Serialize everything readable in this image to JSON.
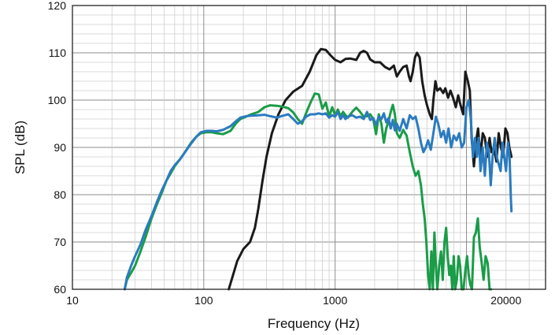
{
  "chart_data": {
    "type": "line",
    "title": "",
    "xlabel": "Frequency (Hz)",
    "ylabel": "SPL (dB)",
    "x_scale": "log",
    "xlim": [
      10,
      40000
    ],
    "ylim": [
      60,
      120
    ],
    "grid": true,
    "legend": "none",
    "x_ticks": [
      {
        "value": 10,
        "label": "10"
      },
      {
        "value": 100,
        "label": "100"
      },
      {
        "value": 1000,
        "label": "1000"
      },
      {
        "value": 20000,
        "label": "20000"
      }
    ],
    "y_ticks": [
      60,
      70,
      80,
      90,
      100,
      110,
      120
    ],
    "series": [
      {
        "color": "#1a1a1a",
        "points": [
          [
            155,
            60
          ],
          [
            165,
            62.5
          ],
          [
            180,
            66
          ],
          [
            200,
            68.5
          ],
          [
            225,
            70
          ],
          [
            245,
            73
          ],
          [
            260,
            77
          ],
          [
            280,
            83
          ],
          [
            300,
            88
          ],
          [
            330,
            93
          ],
          [
            370,
            97
          ],
          [
            420,
            100
          ],
          [
            480,
            101.8
          ],
          [
            560,
            103
          ],
          [
            640,
            106
          ],
          [
            720,
            109.5
          ],
          [
            780,
            110.8
          ],
          [
            850,
            110.6
          ],
          [
            920,
            109.5
          ],
          [
            1000,
            108.5
          ],
          [
            1100,
            108
          ],
          [
            1200,
            108.7
          ],
          [
            1300,
            108.8
          ],
          [
            1450,
            108.5
          ],
          [
            1550,
            110
          ],
          [
            1650,
            110.4
          ],
          [
            1750,
            110
          ],
          [
            1850,
            108.6
          ],
          [
            2000,
            108
          ],
          [
            2200,
            108
          ],
          [
            2400,
            107
          ],
          [
            2600,
            106.5
          ],
          [
            2800,
            107.3
          ],
          [
            2950,
            105
          ],
          [
            3100,
            106
          ],
          [
            3300,
            107
          ],
          [
            3500,
            107.3
          ],
          [
            3650,
            105
          ],
          [
            3750,
            104
          ],
          [
            3900,
            106
          ],
          [
            4050,
            109
          ],
          [
            4200,
            110
          ],
          [
            4400,
            109
          ],
          [
            4600,
            104
          ],
          [
            4800,
            101
          ],
          [
            5000,
            99
          ],
          [
            5250,
            97
          ],
          [
            5450,
            96
          ],
          [
            5600,
            100
          ],
          [
            5800,
            104
          ],
          [
            6000,
            102
          ],
          [
            6300,
            102.5
          ],
          [
            6650,
            101.5
          ],
          [
            6900,
            102.5
          ],
          [
            7250,
            100.5
          ],
          [
            7550,
            102
          ],
          [
            7900,
            100.5
          ],
          [
            8300,
            98.5
          ],
          [
            8650,
            101
          ],
          [
            9000,
            99
          ],
          [
            9450,
            97
          ],
          [
            9800,
            106
          ],
          [
            10250,
            104
          ],
          [
            10600,
            102
          ],
          [
            10950,
            92
          ],
          [
            11400,
            86
          ],
          [
            11800,
            91
          ],
          [
            12250,
            94
          ],
          [
            12750,
            88
          ],
          [
            13300,
            93
          ],
          [
            13800,
            92
          ],
          [
            14400,
            88
          ],
          [
            15000,
            92
          ],
          [
            15500,
            89
          ],
          [
            16200,
            90
          ],
          [
            16900,
            87
          ],
          [
            17600,
            93
          ],
          [
            18300,
            90
          ],
          [
            19000,
            88
          ],
          [
            19800,
            94
          ],
          [
            20500,
            93
          ],
          [
            21200,
            90
          ],
          [
            22000,
            88
          ]
        ]
      },
      {
        "color": "#1a9c48",
        "points": [
          [
            25,
            60
          ],
          [
            26,
            62
          ],
          [
            28,
            63.5
          ],
          [
            30,
            65
          ],
          [
            33,
            68
          ],
          [
            36,
            71
          ],
          [
            40,
            75
          ],
          [
            44,
            78
          ],
          [
            48,
            80.5
          ],
          [
            52,
            83
          ],
          [
            56,
            84.5
          ],
          [
            60,
            86
          ],
          [
            66,
            87.5
          ],
          [
            72,
            89
          ],
          [
            80,
            91
          ],
          [
            88,
            92.3
          ],
          [
            95,
            93
          ],
          [
            105,
            93.2
          ],
          [
            115,
            93.2
          ],
          [
            125,
            93
          ],
          [
            140,
            92.8
          ],
          [
            160,
            93.5
          ],
          [
            175,
            95
          ],
          [
            190,
            96
          ],
          [
            210,
            96.5
          ],
          [
            230,
            97
          ],
          [
            260,
            97.5
          ],
          [
            290,
            98.5
          ],
          [
            320,
            98.9
          ],
          [
            360,
            98.8
          ],
          [
            400,
            98.6
          ],
          [
            440,
            98.3
          ],
          [
            480,
            97.4
          ],
          [
            520,
            96
          ],
          [
            560,
            95
          ],
          [
            600,
            97.2
          ],
          [
            650,
            99.5
          ],
          [
            700,
            101.4
          ],
          [
            750,
            101.2
          ],
          [
            800,
            98.2
          ],
          [
            850,
            99.5
          ],
          [
            900,
            96.5
          ],
          [
            950,
            98.5
          ],
          [
            1000,
            96.8
          ],
          [
            1050,
            98
          ],
          [
            1100,
            96.6
          ],
          [
            1150,
            97.5
          ],
          [
            1200,
            96.8
          ],
          [
            1250,
            96.3
          ],
          [
            1350,
            97.5
          ],
          [
            1450,
            98.4
          ],
          [
            1550,
            97.5
          ],
          [
            1650,
            96.5
          ],
          [
            1750,
            96.6
          ],
          [
            1850,
            97
          ],
          [
            1950,
            96
          ],
          [
            2050,
            92.8
          ],
          [
            2150,
            97
          ],
          [
            2250,
            95
          ],
          [
            2350,
            91
          ],
          [
            2450,
            94
          ],
          [
            2550,
            95.5
          ],
          [
            2650,
            97.5
          ],
          [
            2750,
            99
          ],
          [
            2850,
            97
          ],
          [
            2950,
            93
          ],
          [
            3100,
            92
          ],
          [
            3300,
            93.7
          ],
          [
            3500,
            92.5
          ],
          [
            3700,
            89
          ],
          [
            3900,
            86
          ],
          [
            4100,
            84
          ],
          [
            4300,
            85
          ],
          [
            4500,
            82
          ],
          [
            4650,
            78
          ],
          [
            4800,
            75
          ],
          [
            4950,
            70
          ],
          [
            5100,
            63
          ],
          [
            5250,
            60
          ],
          [
            5400,
            68
          ],
          [
            5550,
            60
          ],
          [
            5700,
            72
          ],
          [
            5850,
            65
          ],
          [
            6000,
            60
          ],
          [
            6200,
            65
          ],
          [
            6400,
            68
          ],
          [
            6600,
            62
          ],
          [
            6800,
            70
          ],
          [
            7000,
            73
          ],
          [
            7200,
            67
          ],
          [
            7400,
            63
          ],
          [
            7600,
            65
          ],
          [
            7800,
            60
          ],
          [
            8000,
            67
          ],
          [
            8200,
            60
          ],
          [
            8450,
            62
          ],
          [
            8700,
            67
          ],
          [
            8950,
            65
          ],
          [
            9200,
            60
          ],
          [
            9500,
            60
          ],
          [
            9800,
            64
          ],
          [
            10100,
            67
          ],
          [
            10400,
            63
          ],
          [
            10700,
            61
          ],
          [
            11000,
            60
          ],
          [
            11400,
            71
          ],
          [
            11800,
            72
          ],
          [
            12200,
            75
          ],
          [
            12600,
            69
          ],
          [
            13000,
            66
          ],
          [
            13500,
            62
          ],
          [
            14000,
            67
          ],
          [
            14500,
            65.5
          ],
          [
            15000,
            60
          ],
          [
            15400,
            60
          ]
        ]
      },
      {
        "color": "#2b7bbf",
        "points": [
          [
            25,
            60
          ],
          [
            26,
            62.5
          ],
          [
            28,
            65
          ],
          [
            30,
            67
          ],
          [
            33,
            69.5
          ],
          [
            36,
            72.5
          ],
          [
            40,
            75.5
          ],
          [
            44,
            78.5
          ],
          [
            48,
            81
          ],
          [
            52,
            83
          ],
          [
            56,
            85
          ],
          [
            60,
            86.2
          ],
          [
            66,
            87.5
          ],
          [
            72,
            89
          ],
          [
            80,
            90.8
          ],
          [
            88,
            92.3
          ],
          [
            95,
            93.2
          ],
          [
            105,
            93.5
          ],
          [
            115,
            93.5
          ],
          [
            125,
            93.4
          ],
          [
            140,
            93.7
          ],
          [
            160,
            94.5
          ],
          [
            175,
            95.5
          ],
          [
            190,
            96.3
          ],
          [
            210,
            96.6
          ],
          [
            230,
            96.7
          ],
          [
            260,
            96.8
          ],
          [
            290,
            96.9
          ],
          [
            320,
            96.6
          ],
          [
            360,
            96.3
          ],
          [
            400,
            96.7
          ],
          [
            440,
            97
          ],
          [
            480,
            96
          ],
          [
            520,
            95
          ],
          [
            560,
            95.5
          ],
          [
            600,
            96.5
          ],
          [
            650,
            97
          ],
          [
            700,
            97
          ],
          [
            750,
            97.2
          ],
          [
            800,
            97
          ],
          [
            850,
            97.2
          ],
          [
            900,
            96.3
          ],
          [
            950,
            96.8
          ],
          [
            1000,
            96.5
          ],
          [
            1050,
            97.5
          ],
          [
            1100,
            96
          ],
          [
            1150,
            96.8
          ],
          [
            1200,
            96
          ],
          [
            1250,
            96.5
          ],
          [
            1350,
            96.8
          ],
          [
            1450,
            96.3
          ],
          [
            1550,
            96.5
          ],
          [
            1650,
            96
          ],
          [
            1750,
            97.5
          ],
          [
            1850,
            95.8
          ],
          [
            1950,
            96.2
          ],
          [
            2050,
            94.8
          ],
          [
            2150,
            96.5
          ],
          [
            2250,
            96
          ],
          [
            2350,
            97.2
          ],
          [
            2450,
            95.3
          ],
          [
            2550,
            96.2
          ],
          [
            2650,
            94
          ],
          [
            2750,
            95.8
          ],
          [
            2850,
            93.6
          ],
          [
            2950,
            95
          ],
          [
            3100,
            93.5
          ],
          [
            3300,
            96
          ],
          [
            3500,
            94
          ],
          [
            3700,
            96.8
          ],
          [
            3900,
            96
          ],
          [
            4100,
            96.5
          ],
          [
            4300,
            94
          ],
          [
            4500,
            91
          ],
          [
            4700,
            89
          ],
          [
            4900,
            90
          ],
          [
            5100,
            91.5
          ],
          [
            5350,
            89.5
          ],
          [
            5600,
            93
          ],
          [
            5850,
            96.5
          ],
          [
            6100,
            95
          ],
          [
            6400,
            92.2
          ],
          [
            6700,
            93.5
          ],
          [
            7000,
            91
          ],
          [
            7300,
            94
          ],
          [
            7650,
            90
          ],
          [
            8000,
            92.5
          ],
          [
            8400,
            91.5
          ],
          [
            8800,
            93
          ],
          [
            9200,
            90
          ],
          [
            9600,
            91
          ],
          [
            10000,
            98.5
          ],
          [
            10400,
            100
          ],
          [
            10800,
            96
          ],
          [
            11200,
            88
          ],
          [
            11600,
            92
          ],
          [
            12000,
            88
          ],
          [
            12400,
            92
          ],
          [
            12800,
            85
          ],
          [
            13300,
            90
          ],
          [
            13800,
            84
          ],
          [
            14300,
            91
          ],
          [
            14800,
            89
          ],
          [
            15300,
            82
          ],
          [
            15800,
            88
          ],
          [
            16400,
            92
          ],
          [
            17000,
            88
          ],
          [
            17600,
            86.5
          ],
          [
            18200,
            85
          ],
          [
            18800,
            91
          ],
          [
            19400,
            88
          ],
          [
            20000,
            85
          ],
          [
            20700,
            91
          ],
          [
            21300,
            88
          ],
          [
            21800,
            79
          ],
          [
            22000,
            76.5
          ]
        ]
      }
    ]
  }
}
